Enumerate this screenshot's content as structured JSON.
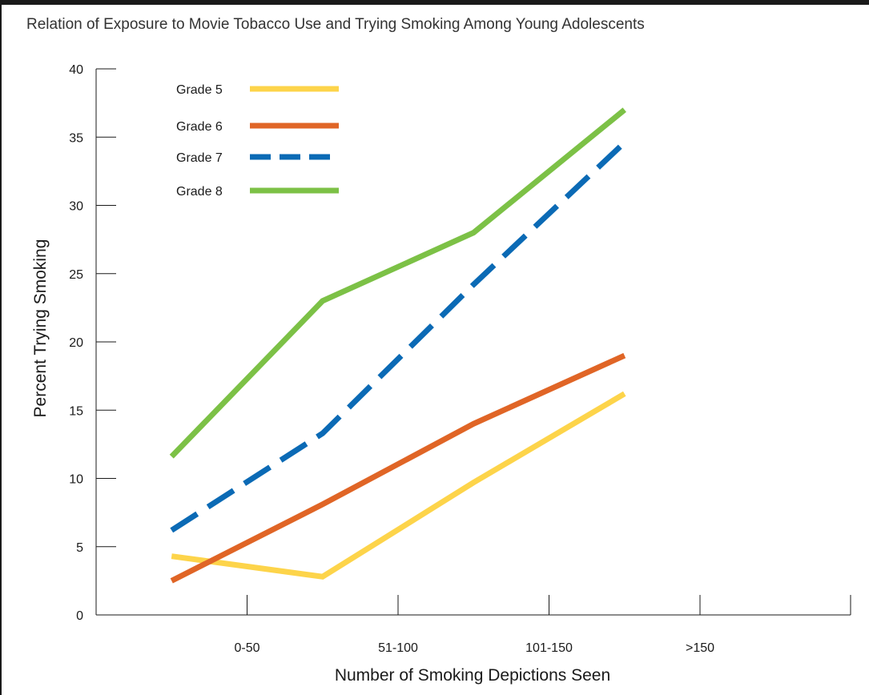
{
  "chart_data": {
    "type": "line",
    "title": "Relation of Exposure to Movie Tobacco Use and Trying Smoking Among Young Adolescents",
    "xlabel": "Number of Smoking Depictions Seen",
    "ylabel": "Percent Trying Smoking",
    "categories": [
      "0-50",
      "51-100",
      "101-150",
      ">150"
    ],
    "ylim": [
      0,
      40
    ],
    "yticks": [
      0,
      5,
      10,
      15,
      20,
      25,
      30,
      35,
      40
    ],
    "grid": false,
    "legend_position": "top-left",
    "series": [
      {
        "name": "Grade 5",
        "color": "#fdd44a",
        "dash": "solid",
        "values": [
          4.3,
          2.8,
          9.7,
          16.2
        ]
      },
      {
        "name": "Grade 6",
        "color": "#e06526",
        "dash": "solid",
        "values": [
          2.5,
          8.1,
          14.0,
          19.0
        ]
      },
      {
        "name": "Grade 7",
        "color": "#0b6ab5",
        "dash": "dashed",
        "values": [
          6.2,
          13.3,
          24.2,
          34.6
        ]
      },
      {
        "name": "Grade 8",
        "color": "#7cc146",
        "dash": "solid",
        "values": [
          11.6,
          23.0,
          28.0,
          37.0
        ]
      }
    ]
  }
}
